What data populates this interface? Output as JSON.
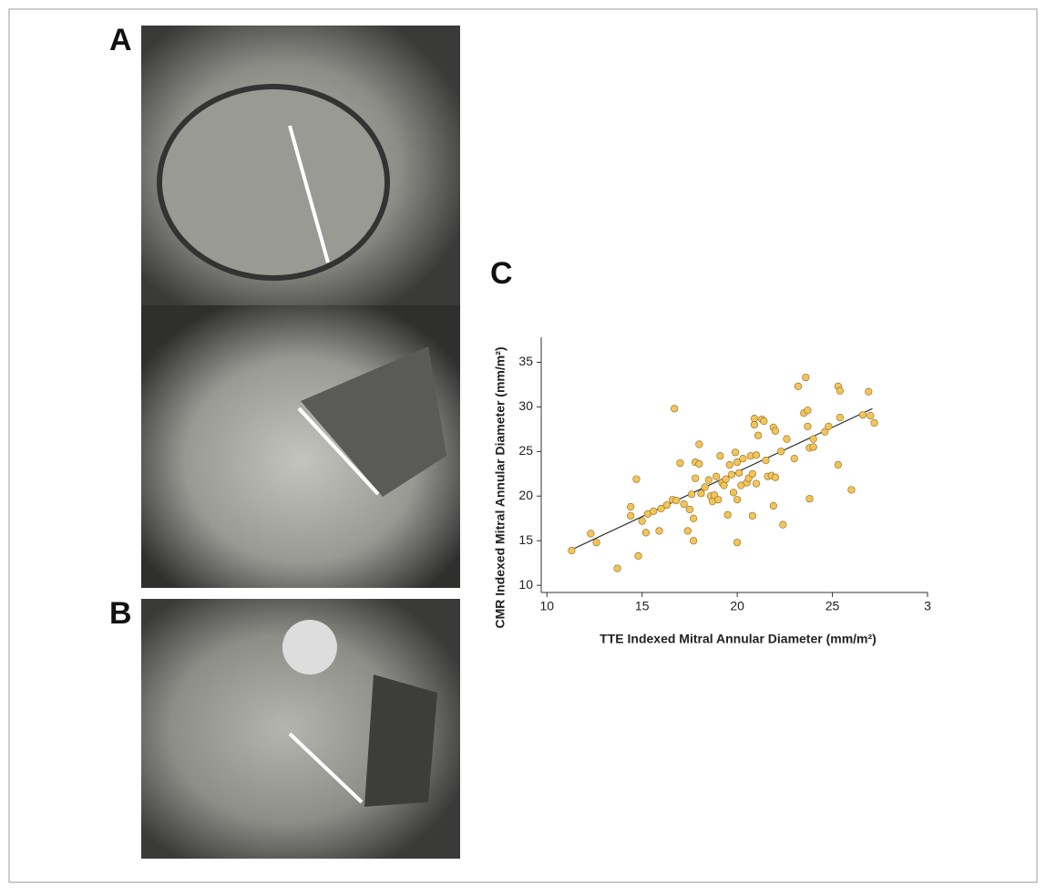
{
  "panels": {
    "a": "A",
    "b": "B"
  },
  "chart_data": {
    "type": "scatter",
    "panel_label": "C",
    "xlabel": "TTE Indexed Mitral Annular Diameter (mm/m²)",
    "ylabel": "CMR Indexed Mitral Annular Diameter (mm/m²)",
    "xlim": [
      9.7,
      30
    ],
    "ylim": [
      9.2,
      37.8
    ],
    "xticks": [
      10,
      15,
      20,
      25,
      {
        "value": 30,
        "label": "3"
      }
    ],
    "yticks": [
      10,
      15,
      20,
      25,
      30,
      35
    ],
    "color": "#f2c45a",
    "x": [
      11.3,
      12.3,
      12.6,
      13.7,
      14.4,
      14.4,
      14.7,
      14.8,
      15,
      15.2,
      15.3,
      15.6,
      15.9,
      16,
      16.3,
      16.6,
      16.7,
      16.8,
      17,
      17.2,
      17.4,
      17.5,
      17.6,
      17.7,
      17.7,
      17.8,
      17.8,
      18,
      18,
      18.1,
      18.3,
      18.5,
      18.6,
      18.7,
      18.8,
      18.9,
      19,
      19.1,
      19.2,
      19.3,
      19.4,
      19.5,
      19.6,
      19.7,
      19.8,
      19.9,
      20,
      20,
      20,
      20.1,
      20.2,
      20.3,
      20.5,
      20.6,
      20.7,
      20.8,
      20.8,
      20.9,
      20.9,
      21,
      21,
      21.1,
      21.3,
      21.4,
      21.5,
      21.6,
      21.8,
      21.9,
      22,
      22,
      21.9,
      22.3,
      22.4,
      22.6,
      23,
      23.2,
      23.5,
      23.6,
      23.7,
      23.7,
      23.8,
      23.8,
      24,
      24,
      24.6,
      24.8,
      25.3,
      25.4,
      25.3,
      25.4,
      26,
      26.6,
      26.9,
      27,
      27.2
    ],
    "y": [
      13.9,
      15.8,
      14.8,
      11.9,
      17.8,
      18.8,
      21.9,
      13.3,
      17.2,
      15.9,
      18,
      18.3,
      16.1,
      18.6,
      19,
      19.6,
      29.8,
      19.5,
      23.7,
      19.1,
      16.1,
      18.5,
      20.2,
      15,
      17.5,
      22,
      23.8,
      25.8,
      23.6,
      20.3,
      21,
      21.8,
      20,
      19.4,
      20.1,
      22.2,
      19.6,
      24.5,
      21.5,
      21.2,
      21.9,
      17.9,
      23.5,
      22.4,
      20.4,
      24.9,
      19.6,
      14.8,
      23.8,
      22.6,
      21.2,
      24.2,
      21.5,
      22,
      24.5,
      22.5,
      17.8,
      28.7,
      28,
      21.4,
      24.6,
      26.8,
      28.6,
      28.4,
      24,
      22.2,
      22.3,
      27.7,
      27.3,
      22.1,
      18.9,
      25,
      16.8,
      26.4,
      24.2,
      32.3,
      29.3,
      33.3,
      27.8,
      29.6,
      25.4,
      19.7,
      26.4,
      25.5,
      27.2,
      27.8,
      32.3,
      31.8,
      23.5,
      28.8,
      20.7,
      29.1,
      31.7,
      29,
      28.2
    ],
    "fit": {
      "x": [
        11.3,
        27.1
      ],
      "y": [
        14,
        29.8
      ]
    }
  }
}
